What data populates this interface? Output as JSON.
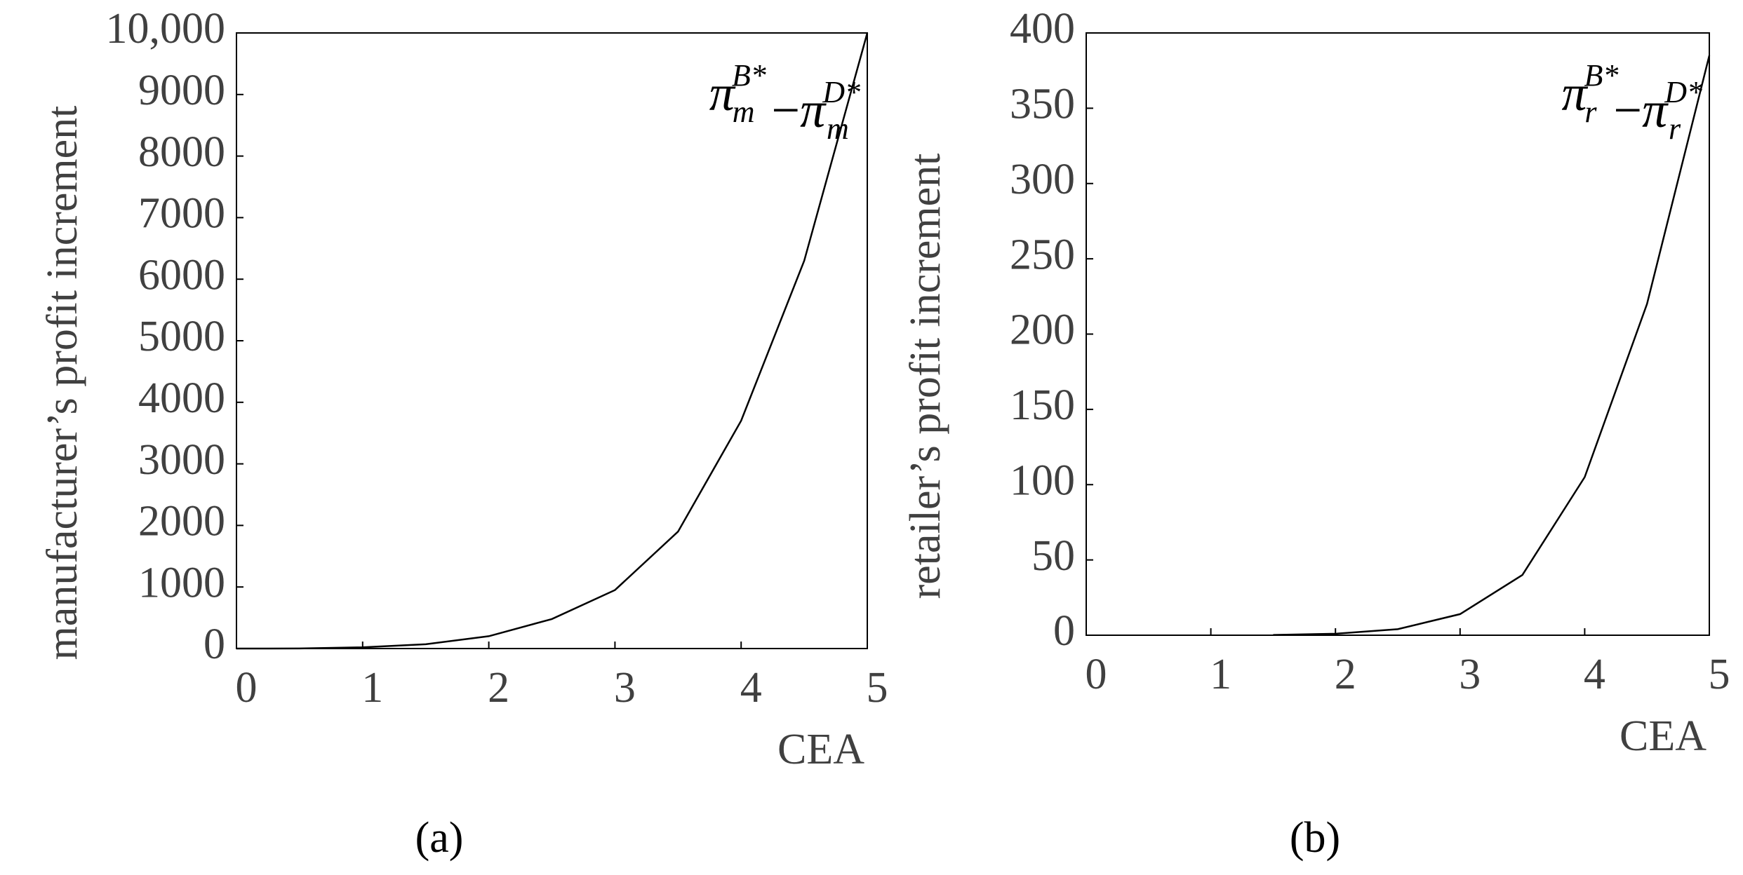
{
  "chart_data": [
    {
      "type": "line",
      "caption": "(a)",
      "ylabel": "manufacturer’s profit increment",
      "xlabel": "CEA",
      "annotation": {
        "left": {
          "base": "π",
          "sub": "m",
          "sup": "B*"
        },
        "op": "−",
        "right": {
          "base": "π",
          "sub": "m",
          "sup": "D*"
        }
      },
      "x": [
        0,
        0.5,
        1,
        1.5,
        2,
        2.5,
        3,
        3.5,
        4,
        4.5,
        5
      ],
      "values": [
        0,
        1,
        20,
        70,
        200,
        480,
        950,
        1900,
        3700,
        6300,
        10000
      ],
      "color": "#000000",
      "xlim": [
        0,
        5
      ],
      "xticks": [
        0,
        1,
        2,
        3,
        4,
        5
      ],
      "ylim": [
        0,
        10000
      ],
      "yticks": [
        0,
        1000,
        2000,
        3000,
        4000,
        5000,
        6000,
        7000,
        8000,
        9000,
        {
          "value": 10000,
          "label": "10,000"
        }
      ]
    },
    {
      "type": "line",
      "caption": "(b)",
      "ylabel": "retailer’s profit increment",
      "xlabel": "CEA",
      "annotation": {
        "left": {
          "base": "π",
          "sub": "r",
          "sup": "B*"
        },
        "op": "−",
        "right": {
          "base": "π",
          "sub": "r",
          "sup": "D*"
        }
      },
      "x": [
        1.5,
        2,
        2.5,
        3,
        3.5,
        4,
        4.5,
        5
      ],
      "values": [
        0.2,
        1,
        4,
        14,
        40,
        105,
        220,
        385
      ],
      "color": "#000000",
      "xlim": [
        0,
        5
      ],
      "xticks": [
        0,
        1,
        2,
        3,
        4,
        5
      ],
      "ylim": [
        0,
        400
      ],
      "yticks": [
        0,
        50,
        100,
        150,
        200,
        250,
        300,
        350,
        400
      ]
    }
  ]
}
